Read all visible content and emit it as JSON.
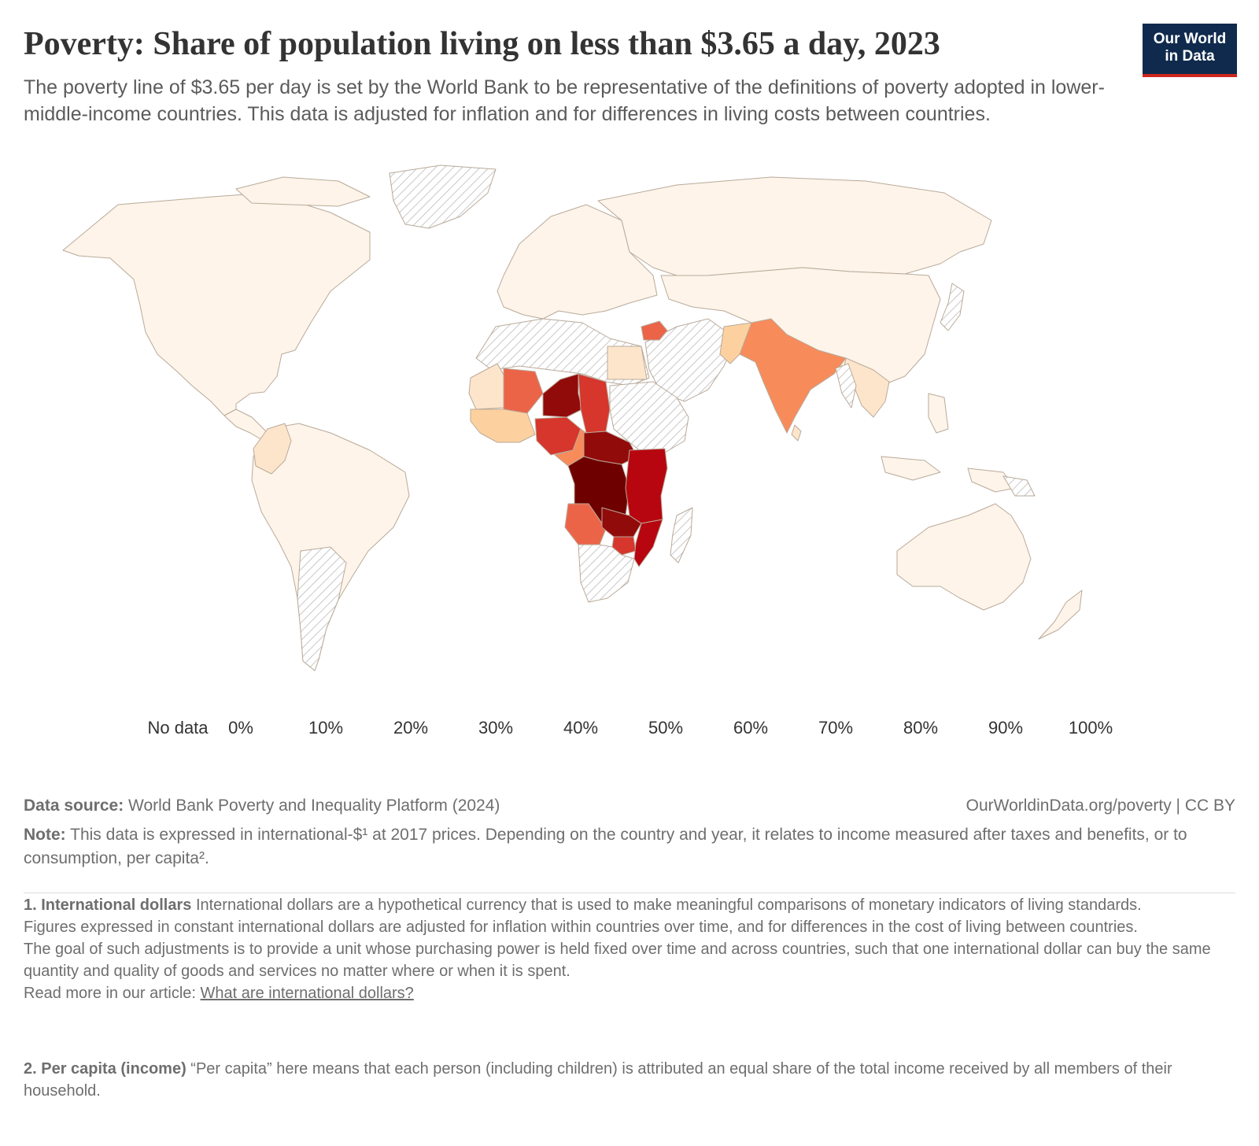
{
  "title": "Poverty: Share of population living on less than $3.65 a day, 2023",
  "subtitle": "The poverty line of $3.65 per day is set by the World Bank to be representative of the definitions of poverty adopted in lower-middle-income countries. This data is adjusted for inflation and for differences in living costs between countries.",
  "logo": {
    "line1": "Our World",
    "line2": "in Data",
    "bg": "#0f2a4d",
    "accent": "#ce261e"
  },
  "legend": {
    "no_data_label": "No data",
    "ticks": [
      "0%",
      "10%",
      "20%",
      "30%",
      "40%",
      "50%",
      "60%",
      "70%",
      "80%",
      "90%",
      "100%"
    ],
    "colors": [
      "#fef4e9",
      "#fde5cb",
      "#fdd19f",
      "#fcb37c",
      "#f88b5a",
      "#ec6448",
      "#d6362b",
      "#b7060f",
      "#920b0b",
      "#6f0000"
    ]
  },
  "map_data": {
    "projection": "Robinson",
    "regions": [
      {
        "name": "North America",
        "share_pct": 2
      },
      {
        "name": "South America",
        "share_pct": 4
      },
      {
        "name": "Colombia",
        "share_pct": 14
      },
      {
        "name": "Europe",
        "share_pct": 1
      },
      {
        "name": "Russia",
        "share_pct": 1
      },
      {
        "name": "Central Asia",
        "share_pct": 3
      },
      {
        "name": "Egypt",
        "share_pct": 17
      },
      {
        "name": "Syria",
        "share_pct": 65
      },
      {
        "name": "India",
        "share_pct": 44
      },
      {
        "name": "China",
        "share_pct": 2
      },
      {
        "name": "Southeast Asia",
        "share_pct": 8
      },
      {
        "name": "Australia",
        "share_pct": 1
      },
      {
        "name": "Mauritania",
        "share_pct": 18
      },
      {
        "name": "Mali",
        "share_pct": 55
      },
      {
        "name": "Niger",
        "share_pct": 85
      },
      {
        "name": "Chad",
        "share_pct": 72
      },
      {
        "name": "Nigeria",
        "share_pct": 66
      },
      {
        "name": "Cameroon",
        "share_pct": 48
      },
      {
        "name": "Central African Republic",
        "share_pct": 84
      },
      {
        "name": "DR Congo",
        "share_pct": 92
      },
      {
        "name": "Angola",
        "share_pct": 58
      },
      {
        "name": "Tanzania",
        "share_pct": 76
      },
      {
        "name": "Zambia",
        "share_pct": 82
      },
      {
        "name": "Malawi",
        "share_pct": 89
      },
      {
        "name": "Mozambique",
        "share_pct": 86
      },
      {
        "name": "Zimbabwe",
        "share_pct": 70
      }
    ]
  },
  "footer": {
    "source_label": "Data source:",
    "source_text": " World Bank Poverty and Inequality Platform (2024)",
    "url": "OurWorldinData.org/poverty | CC BY",
    "note_label": "Note:",
    "note_text": " This data is expressed in international-$¹ at 2017 prices. Depending on the country and year, it relates to income measured after taxes and benefits, or to consumption, per capita².",
    "fn1_label": "1. International dollars",
    "fn1_text": " International dollars are a hypothetical currency that is used to make meaningful comparisons of monetary indicators of living standards.",
    "fn1_p2": "Figures expressed in constant international dollars are adjusted for inflation within countries over time, and for differences in the cost of living between countries.",
    "fn1_p3": "The goal of such adjustments is to provide a unit whose purchasing power is held fixed over time and across countries, such that one international dollar can buy the same quantity and quality of goods and services no matter where or when it is spent.",
    "fn1_readmore": "Read more in our article: ",
    "fn1_link": "What are international dollars?",
    "fn2_label": "2. Per capita (income)",
    "fn2_text": " “Per capita” here means that each person (including children) is attributed an equal share of the total income received by all members of their household."
  }
}
